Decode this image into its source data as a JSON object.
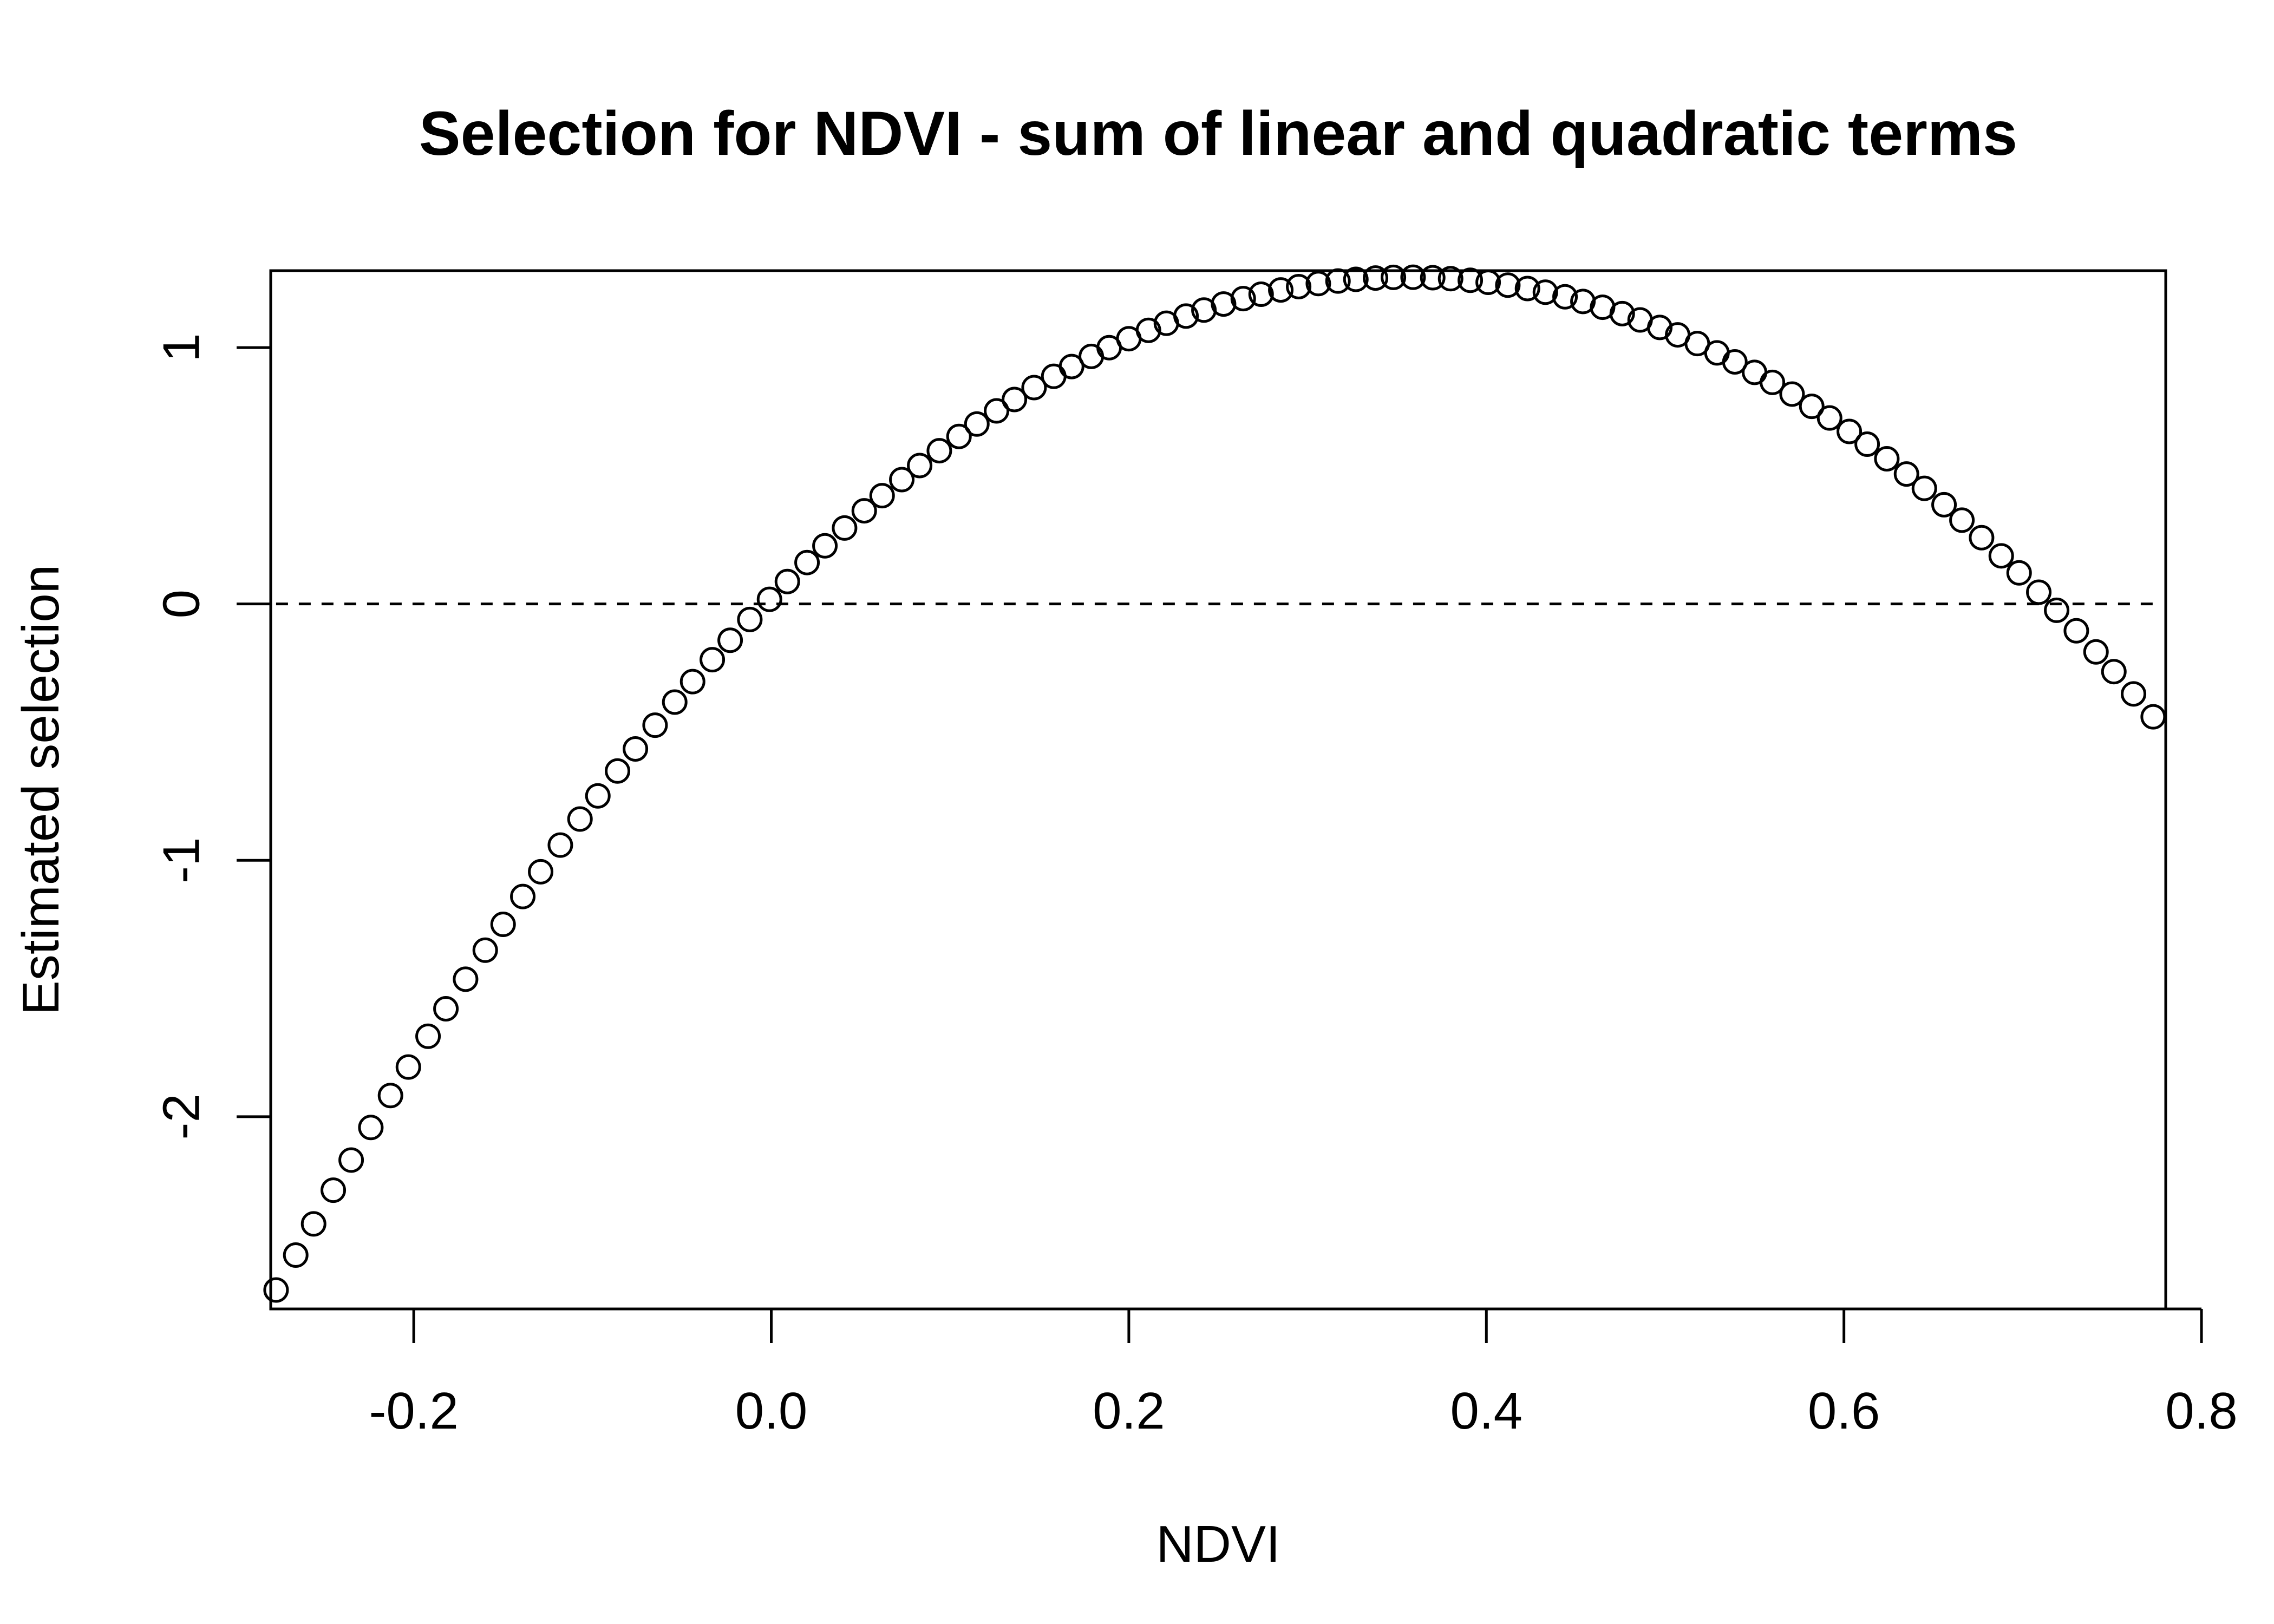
{
  "chart_data": {
    "type": "scatter",
    "title": "Selection for NDVI - sum of linear and quadratic terms",
    "xlabel": "NDVI",
    "ylabel": "Estimated selection",
    "xlim": [
      -0.28,
      0.78
    ],
    "ylim": [
      -2.75,
      1.3
    ],
    "xticks": [
      -0.2,
      0.0,
      0.2,
      0.4,
      0.6,
      0.8
    ],
    "xtick_labels": [
      "-0.2",
      "0.0",
      "0.2",
      "0.4",
      "0.6",
      "0.8"
    ],
    "yticks": [
      -2,
      -1,
      0,
      1
    ],
    "ytick_labels": [
      "-2",
      "-1",
      "0",
      "1"
    ],
    "grid": false,
    "marker": "open-circle",
    "reference_line": {
      "y": 0,
      "from_x": -0.277,
      "to_x": 0.773,
      "style": "dashed"
    },
    "series": [
      {
        "x_start": -0.277,
        "x_end": 0.773,
        "n_points": 100,
        "model": {
          "a": 0.025,
          "b": 7.02,
          "c": -9.86
        },
        "x": [
          -0.277,
          -0.266,
          -0.256,
          -0.245,
          -0.235,
          -0.224,
          -0.213,
          -0.203,
          -0.192,
          -0.182,
          -0.171,
          -0.16,
          -0.15,
          -0.139,
          -0.129,
          -0.118,
          -0.107,
          -0.097,
          -0.086,
          -0.076,
          -0.065,
          -0.054,
          -0.044,
          -0.033,
          -0.023,
          -0.012,
          -0.001,
          0.009,
          0.02,
          0.03,
          0.041,
          0.052,
          0.062,
          0.073,
          0.083,
          0.094,
          0.105,
          0.115,
          0.126,
          0.136,
          0.147,
          0.158,
          0.168,
          0.179,
          0.189,
          0.2,
          0.211,
          0.221,
          0.232,
          0.242,
          0.253,
          0.264,
          0.274,
          0.285,
          0.295,
          0.306,
          0.317,
          0.327,
          0.338,
          0.348,
          0.359,
          0.37,
          0.38,
          0.391,
          0.401,
          0.412,
          0.423,
          0.433,
          0.444,
          0.454,
          0.465,
          0.476,
          0.486,
          0.497,
          0.507,
          0.518,
          0.529,
          0.539,
          0.55,
          0.56,
          0.571,
          0.582,
          0.592,
          0.603,
          0.613,
          0.624,
          0.635,
          0.645,
          0.656,
          0.666,
          0.677,
          0.688,
          0.698,
          0.709,
          0.719,
          0.73,
          0.741,
          0.751,
          0.762,
          0.773
        ]
      }
    ]
  }
}
